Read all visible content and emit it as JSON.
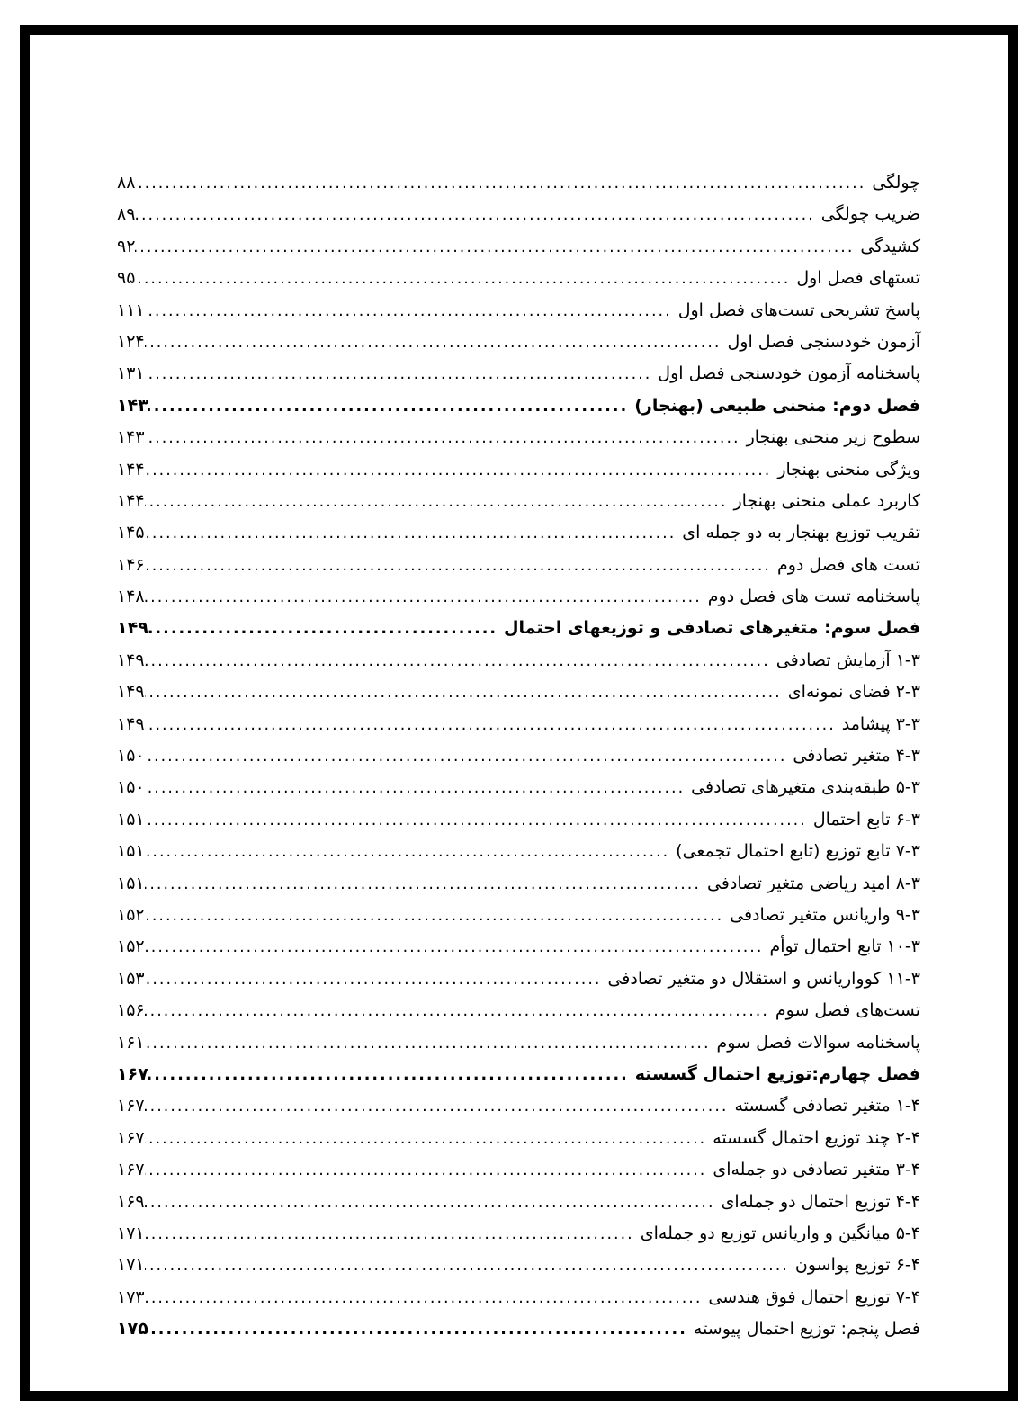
{
  "document": {
    "kind": "book-table-of-contents-page",
    "language": "fa",
    "toc": {
      "entries": [
        {
          "label": "چولگی",
          "page": "۸۸",
          "style": "normal"
        },
        {
          "label": "ضریب چولگی",
          "page": "۸۹",
          "style": "normal"
        },
        {
          "label": "کشیدگی",
          "page": "۹۲",
          "style": "normal"
        },
        {
          "label": "تستهای فصل اول",
          "page": "۹۵",
          "style": "normal"
        },
        {
          "label": "پاسخ تشریحی تست‌های فصل اول",
          "page": "۱۱۱",
          "style": "normal"
        },
        {
          "label": "آزمون خودسنجی فصل اول",
          "page": "۱۲۴",
          "style": "normal"
        },
        {
          "label": "پاسخنامه آزمون خودسنجی فصل اول",
          "page": "۱۳۱",
          "style": "normal"
        },
        {
          "label": "فصل دوم: منحنی طبیعی (بهنجار)",
          "page": "۱۴۳",
          "style": "chapter"
        },
        {
          "label": "سطوح زیر منحنی بهنجار",
          "page": "۱۴۳",
          "style": "normal"
        },
        {
          "label": "ویژگی منحنی بهنجار",
          "page": "۱۴۴",
          "style": "normal"
        },
        {
          "label": "کاربرد عملی منحنی بهنجار",
          "page": "۱۴۴",
          "style": "normal"
        },
        {
          "label": "تقریب توزیع بهنجار به دو جمله ای",
          "page": "۱۴۵",
          "style": "normal"
        },
        {
          "label": "تست های فصل دوم",
          "page": "۱۴۶",
          "style": "normal"
        },
        {
          "label": "پاسخنامه تست های فصل دوم",
          "page": "۱۴۸",
          "style": "normal"
        },
        {
          "label": "فصل سوم: متغیرهای تصادفی و توزیعهای احتمال",
          "page": "۱۴۹",
          "style": "chapter"
        },
        {
          "label": "۱-۳ آزمایش تصادفی",
          "page": "۱۴۹",
          "style": "normal"
        },
        {
          "label": "۲-۳ فضای نمونه‌ای",
          "page": "۱۴۹",
          "style": "normal"
        },
        {
          "label": "۳-۳ پیشامد",
          "page": "۱۴۹",
          "style": "normal"
        },
        {
          "label": "۴-۳ متغیر تصادفی",
          "page": "۱۵۰",
          "style": "normal"
        },
        {
          "label": "۵-۳ طبقه‌بندی متغیرهای تصادفی",
          "page": "۱۵۰",
          "style": "normal"
        },
        {
          "label": "۶-۳ تابع احتمال",
          "page": "۱۵۱",
          "style": "normal"
        },
        {
          "label": "۷-۳ تابع توزیع (تابع احتمال تجمعی)",
          "page": "۱۵۱",
          "style": "normal"
        },
        {
          "label": "۸-۳ امید ریاضی متغیر تصادفی",
          "page": "۱۵۱",
          "style": "normal"
        },
        {
          "label": "۹-۳ واریانس متغیر تصادفی",
          "page": "۱۵۲",
          "style": "normal"
        },
        {
          "label": "۱۰-۳ تابع احتمال توأم",
          "page": "۱۵۲",
          "style": "normal"
        },
        {
          "label": "۱۱-۳ کوواریانس و استقلال دو متغیر تصادفی",
          "page": "۱۵۳",
          "style": "normal"
        },
        {
          "label": "تست‌های فصل سوم",
          "page": "۱۵۶",
          "style": "normal"
        },
        {
          "label": "پاسخنامه سوالات فصل سوم",
          "page": "۱۶۱",
          "style": "normal"
        },
        {
          "label": "فصل چهارم:توزیع احتمال گسسته",
          "page": "۱۶۷",
          "style": "chapter"
        },
        {
          "label": "۱-۴ متغیر تصادفی گسسته",
          "page": "۱۶۷",
          "style": "normal"
        },
        {
          "label": "۲-۴ چند توزیع احتمال گسسته",
          "page": "۱۶۷",
          "style": "normal"
        },
        {
          "label": "۳-۴ متغیر تصادفی دو جمله‌ای",
          "page": "۱۶۷",
          "style": "normal"
        },
        {
          "label": "۴-۴ توزیع احتمال دو جمله‌ای",
          "page": "۱۶۹",
          "style": "normal"
        },
        {
          "label": "۵-۴ میانگین و واریانس توزیع دو جمله‌ای",
          "page": "۱۷۱",
          "style": "normal"
        },
        {
          "label": "۶-۴ توزیع پواسون",
          "page": "۱۷۱",
          "style": "normal"
        },
        {
          "label": "۷-۴ توزیع احتمال فوق هندسی",
          "page": "۱۷۳",
          "style": "normal"
        },
        {
          "label": "فصل پنجم: توزیع احتمال پیوسته",
          "page": "۱۷۵",
          "style": "chapter-light"
        }
      ]
    }
  },
  "colors": {
    "page_bg": "#ffffff",
    "frame_border": "#000000",
    "text": "#000000"
  }
}
